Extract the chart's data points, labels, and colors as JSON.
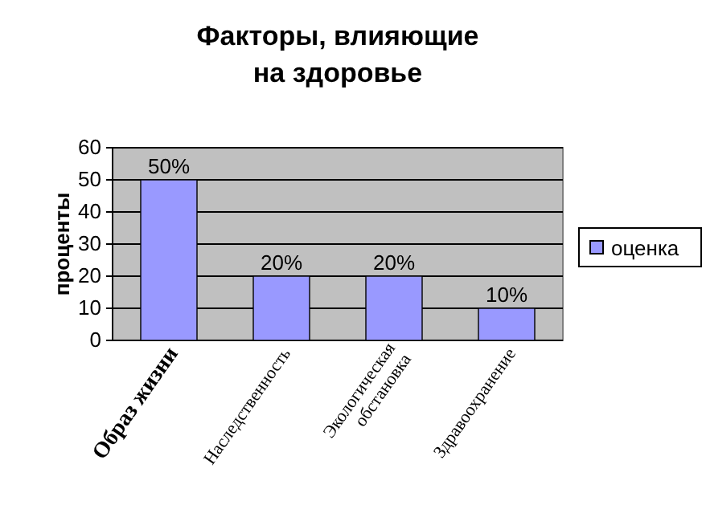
{
  "chart_data": {
    "type": "bar",
    "title": "Факторы, влияющие на здоровье",
    "ylabel": "проценты",
    "categories": [
      "Образ жизни",
      "Наследственность",
      "Экологическая обстановка",
      "Здравоохранение"
    ],
    "series": [
      {
        "name": "оценка",
        "color": "#9999ff",
        "values": [
          50,
          20,
          20,
          10
        ],
        "value_labels": [
          "50%",
          "20%",
          "20%",
          "10%"
        ]
      }
    ],
    "ylim": [
      0,
      60
    ],
    "yticks": [
      0,
      10,
      20,
      30,
      40,
      50,
      60
    ],
    "grid": "y",
    "legend": "right"
  }
}
